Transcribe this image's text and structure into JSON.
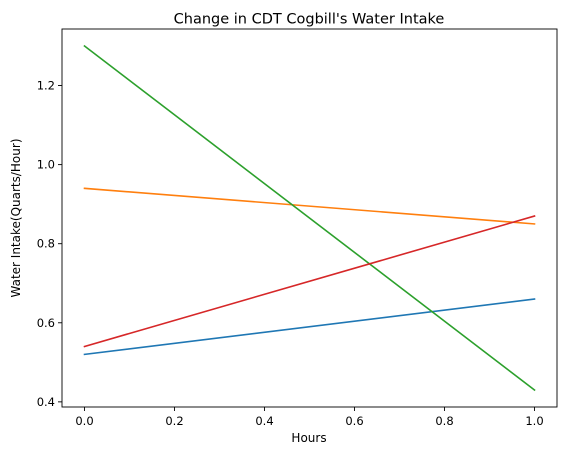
{
  "chart_data": {
    "type": "line",
    "title": "Change in CDT Cogbill's Water Intake",
    "xlabel": "Hours",
    "ylabel": "Water Intake(Quarts/Hour)",
    "xlim": [
      -0.05,
      1.05
    ],
    "ylim": [
      0.387,
      1.343
    ],
    "xticks": [
      0.0,
      0.2,
      0.4,
      0.6,
      0.8,
      1.0
    ],
    "xtick_labels": [
      "0.0",
      "0.2",
      "0.4",
      "0.6",
      "0.8",
      "1.0"
    ],
    "yticks": [
      0.4,
      0.6,
      0.8,
      1.0,
      1.2
    ],
    "ytick_labels": [
      "0.4",
      "0.6",
      "0.8",
      "1.0",
      "1.2"
    ],
    "grid": false,
    "legend": "none",
    "x": [
      0,
      1
    ],
    "series": [
      {
        "values": [
          0.52,
          0.66
        ],
        "color": "#1f77b4"
      },
      {
        "values": [
          0.94,
          0.85
        ],
        "color": "#ff7f0e"
      },
      {
        "values": [
          1.3,
          0.43
        ],
        "color": "#2ca02c"
      },
      {
        "values": [
          0.54,
          0.87
        ],
        "color": "#d62728"
      }
    ]
  }
}
